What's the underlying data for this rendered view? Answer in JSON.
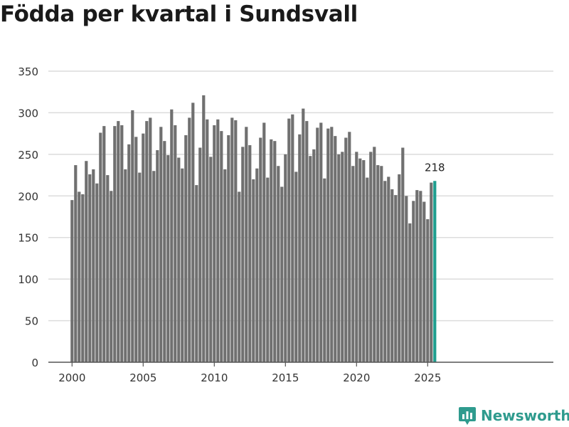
{
  "chart_data": {
    "type": "bar",
    "title": "Födda per kvartal i Sundsvall",
    "xlabel": "",
    "ylabel": "",
    "ylim": [
      0,
      350
    ],
    "yticks": [
      0,
      50,
      100,
      150,
      200,
      250,
      300,
      350
    ],
    "xticks": [
      2000,
      2005,
      2010,
      2015,
      2020,
      2025
    ],
    "grid": true,
    "start_year": 2000,
    "categories": [
      "2000 Q1",
      "2000 Q2",
      "2000 Q3",
      "2000 Q4",
      "2001 Q1",
      "2001 Q2",
      "2001 Q3",
      "2001 Q4",
      "2002 Q1",
      "2002 Q2",
      "2002 Q3",
      "2002 Q4",
      "2003 Q1",
      "2003 Q2",
      "2003 Q3",
      "2003 Q4",
      "2004 Q1",
      "2004 Q2",
      "2004 Q3",
      "2004 Q4",
      "2005 Q1",
      "2005 Q2",
      "2005 Q3",
      "2005 Q4",
      "2006 Q1",
      "2006 Q2",
      "2006 Q3",
      "2006 Q4",
      "2007 Q1",
      "2007 Q2",
      "2007 Q3",
      "2007 Q4",
      "2008 Q1",
      "2008 Q2",
      "2008 Q3",
      "2008 Q4",
      "2009 Q1",
      "2009 Q2",
      "2009 Q3",
      "2009 Q4",
      "2010 Q1",
      "2010 Q2",
      "2010 Q3",
      "2010 Q4",
      "2011 Q1",
      "2011 Q2",
      "2011 Q3",
      "2011 Q4",
      "2012 Q1",
      "2012 Q2",
      "2012 Q3",
      "2012 Q4",
      "2013 Q1",
      "2013 Q2",
      "2013 Q3",
      "2013 Q4",
      "2014 Q1",
      "2014 Q2",
      "2014 Q3",
      "2014 Q4",
      "2015 Q1",
      "2015 Q2",
      "2015 Q3",
      "2015 Q4",
      "2016 Q1",
      "2016 Q2",
      "2016 Q3",
      "2016 Q4",
      "2017 Q1",
      "2017 Q2",
      "2017 Q3",
      "2017 Q4",
      "2018 Q1",
      "2018 Q2",
      "2018 Q3",
      "2018 Q4",
      "2019 Q1",
      "2019 Q2",
      "2019 Q3",
      "2019 Q4",
      "2020 Q1",
      "2020 Q2",
      "2020 Q3",
      "2020 Q4",
      "2021 Q1",
      "2021 Q2",
      "2021 Q3",
      "2021 Q4",
      "2022 Q1",
      "2022 Q2",
      "2022 Q3",
      "2022 Q4",
      "2023 Q1",
      "2023 Q2",
      "2023 Q3",
      "2023 Q4",
      "2024 Q1",
      "2024 Q2",
      "2024 Q3",
      "2024 Q4",
      "2025 Q1",
      "2025 Q2",
      "2025 Q3"
    ],
    "values": [
      195,
      237,
      205,
      202,
      242,
      226,
      232,
      215,
      276,
      284,
      225,
      206,
      284,
      290,
      285,
      232,
      262,
      303,
      271,
      228,
      275,
      290,
      294,
      230,
      255,
      283,
      266,
      249,
      304,
      285,
      246,
      233,
      273,
      294,
      312,
      213,
      258,
      321,
      292,
      247,
      285,
      292,
      278,
      232,
      273,
      294,
      291,
      205,
      259,
      283,
      261,
      220,
      233,
      270,
      288,
      222,
      268,
      266,
      236,
      211,
      250,
      293,
      298,
      229,
      274,
      305,
      290,
      248,
      256,
      282,
      288,
      221,
      281,
      283,
      272,
      250,
      253,
      270,
      277,
      236,
      253,
      245,
      243,
      222,
      253,
      259,
      237,
      236,
      218,
      223,
      208,
      201,
      226,
      258,
      200,
      167,
      194,
      207,
      206,
      193,
      172,
      216,
      218
    ],
    "highlight_index": 102,
    "highlight_label": "218",
    "colors": {
      "bar": "#707070",
      "highlight": "#1f9e8f",
      "grid": "#dcdcdc",
      "axis": "#555555",
      "tick": "#333333"
    }
  },
  "brand": {
    "name": "Newsworthy",
    "icon": "bar-chart-logo-icon",
    "color": "#2f9b8e"
  }
}
